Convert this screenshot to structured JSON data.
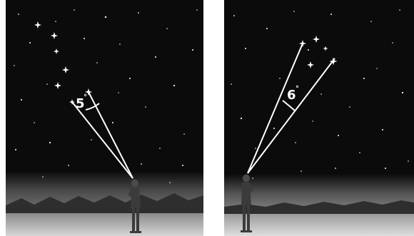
{
  "panels": [
    {
      "angle_label": "5",
      "degree_symbol": "°"
    },
    {
      "angle_label": "6",
      "degree_symbol": "°"
    }
  ],
  "colors": {
    "sky": "#0b0b0b",
    "horizon_glow": "#5e5e5e",
    "ground": "#bdbdbd",
    "mountain": "#2e2e2e",
    "sight_line": "#ffffff",
    "person": "#3b3b3b",
    "star": "#ffffff"
  }
}
